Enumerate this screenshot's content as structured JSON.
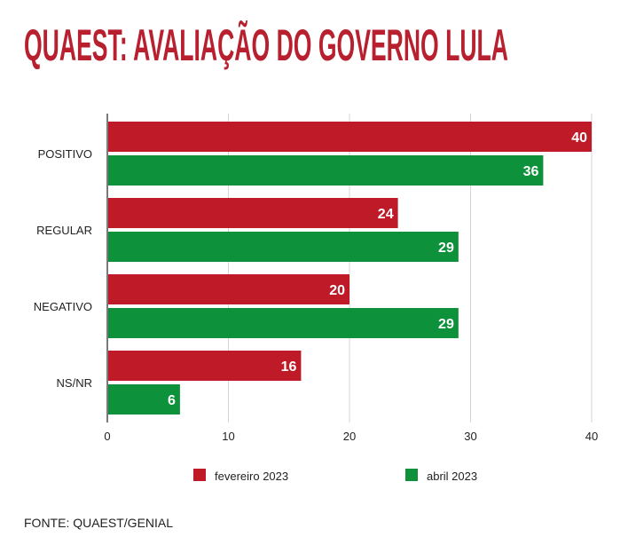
{
  "chart_data": {
    "type": "bar",
    "orientation": "horizontal",
    "title": "QUAEST: AVALIAÇÃO DO GOVERNO LULA",
    "categories": [
      "POSITIVO",
      "REGULAR",
      "NEGATIVO",
      "NS/NR"
    ],
    "series": [
      {
        "name": "fevereiro 2023",
        "color": "#be1a27",
        "values": [
          40,
          24,
          20,
          16
        ]
      },
      {
        "name": "abril 2023",
        "color": "#0d913a",
        "values": [
          36,
          29,
          29,
          6
        ]
      }
    ],
    "xlim": [
      0,
      40
    ],
    "xticks": [
      "0",
      "10",
      "20",
      "30",
      "40"
    ],
    "grid": true,
    "legend_position": "bottom",
    "title_color": "#b8202f",
    "source": "FONTE: QUAEST/GENIAL"
  }
}
